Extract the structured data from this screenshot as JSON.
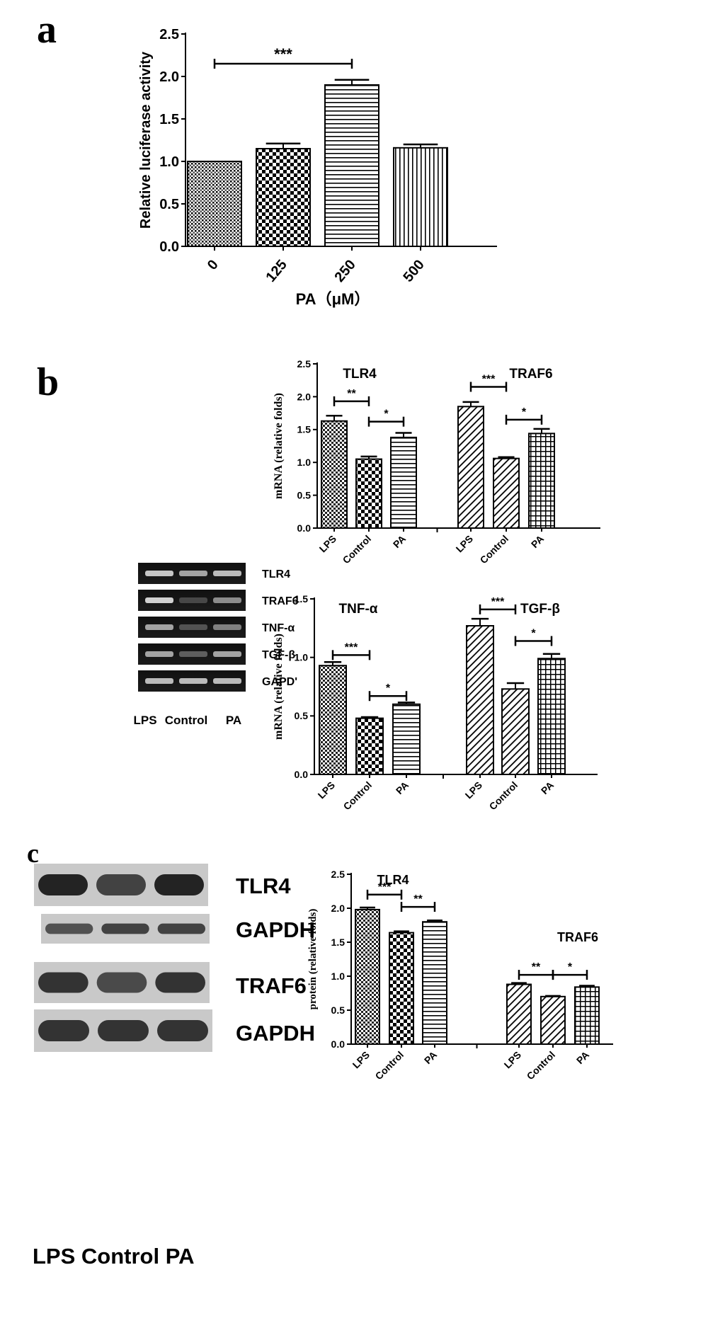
{
  "panels": {
    "a": {
      "letter": "a"
    },
    "b": {
      "letter": "b"
    },
    "c": {
      "letter": "c"
    }
  },
  "gel_b": {
    "bands": [
      "TLR4",
      "TRAF6",
      "TNF-α",
      "TGF-β",
      "GAPD'"
    ],
    "lanes": [
      "LPS",
      "Control",
      "PA"
    ],
    "intensity": [
      [
        0.85,
        0.7,
        0.8
      ],
      [
        0.9,
        0.3,
        0.6
      ],
      [
        0.7,
        0.35,
        0.55
      ],
      [
        0.7,
        0.4,
        0.7
      ],
      [
        0.8,
        0.8,
        0.8
      ]
    ]
  },
  "blot_c": {
    "bands": [
      "TLR4",
      "GAPDH",
      "TRAF6",
      "GAPDH"
    ],
    "lanes_label": "LPS Control  PA",
    "intensity": [
      [
        0.9,
        0.7,
        0.9
      ],
      [
        0.6,
        0.7,
        0.7
      ],
      [
        0.8,
        0.65,
        0.8
      ],
      [
        0.8,
        0.8,
        0.8
      ]
    ]
  },
  "chart_data": [
    {
      "id": "a",
      "type": "bar",
      "categories": [
        "0",
        "125",
        "250",
        "500"
      ],
      "values": [
        1.0,
        1.15,
        1.9,
        1.16
      ],
      "errors": [
        0.0,
        0.06,
        0.06,
        0.04
      ],
      "patterns": [
        "dots",
        "checker",
        "hlines",
        "vlines"
      ],
      "ylabel": "Relative luciferase activity",
      "xlabel": "PA（μM）",
      "ylim": [
        0,
        2.5
      ],
      "yticks": [
        "0.0",
        "0.5",
        "1.0",
        "1.5",
        "2.0",
        "2.5"
      ],
      "significance": [
        {
          "from": 0,
          "to": 2,
          "label": "***",
          "y": 2.15
        }
      ]
    },
    {
      "id": "b1",
      "type": "bar",
      "groups": [
        {
          "title": "TLR4",
          "categories": [
            "LPS",
            "Control",
            "PA"
          ],
          "values": [
            1.63,
            1.05,
            1.38
          ],
          "errors": [
            0.08,
            0.04,
            0.07
          ],
          "patterns": [
            "checker-small",
            "checker",
            "hlines"
          ],
          "significance": [
            {
              "from": 0,
              "to": 1,
              "label": "**",
              "y": 1.93
            },
            {
              "from": 1,
              "to": 2,
              "label": "*",
              "y": 1.62
            }
          ]
        },
        {
          "title": "TRAF6",
          "categories": [
            "LPS",
            "Control",
            "PA"
          ],
          "values": [
            1.85,
            1.06,
            1.44
          ],
          "errors": [
            0.07,
            0.02,
            0.07
          ],
          "patterns": [
            "diag",
            "diag",
            "grid"
          ],
          "significance": [
            {
              "from": 0,
              "to": 1,
              "label": "***",
              "y": 2.15
            },
            {
              "from": 1,
              "to": 2,
              "label": "*",
              "y": 1.65
            }
          ]
        }
      ],
      "ylabel": "mRNA (relative folds)",
      "ylim": [
        0,
        2.5
      ],
      "yticks": [
        "0.0",
        "0.5",
        "1.0",
        "1.5",
        "2.0",
        "2.5"
      ]
    },
    {
      "id": "b2",
      "type": "bar",
      "groups": [
        {
          "title": "TNF-α",
          "categories": [
            "LPS",
            "Control",
            "PA"
          ],
          "values": [
            0.93,
            0.48,
            0.6
          ],
          "errors": [
            0.03,
            0.01,
            0.015
          ],
          "patterns": [
            "checker-small",
            "checker",
            "hlines"
          ],
          "significance": [
            {
              "from": 0,
              "to": 1,
              "label": "***",
              "y": 1.02
            },
            {
              "from": 1,
              "to": 2,
              "label": "*",
              "y": 0.67
            }
          ]
        },
        {
          "title": "TGF-β",
          "categories": [
            "LPS",
            "Control",
            "PA"
          ],
          "values": [
            1.27,
            0.73,
            0.99
          ],
          "errors": [
            0.06,
            0.05,
            0.04
          ],
          "patterns": [
            "diag",
            "diag",
            "grid"
          ],
          "significance": [
            {
              "from": 0,
              "to": 1,
              "label": "***",
              "y": 1.41
            },
            {
              "from": 1,
              "to": 2,
              "label": "*",
              "y": 1.14
            }
          ]
        }
      ],
      "ylabel": "mRNA (relative folds)",
      "ylim": [
        0,
        1.5
      ],
      "yticks": [
        "0.0",
        "0.5",
        "1.0",
        "1.5"
      ]
    },
    {
      "id": "c",
      "type": "bar",
      "groups": [
        {
          "title": "TLR4",
          "categories": [
            "LPS",
            "Control",
            "PA"
          ],
          "values": [
            1.98,
            1.64,
            1.8
          ],
          "errors": [
            0.03,
            0.02,
            0.02
          ],
          "patterns": [
            "checker-small",
            "checker",
            "hlines"
          ],
          "significance": [
            {
              "from": 0,
              "to": 1,
              "label": "***",
              "y": 2.2
            },
            {
              "from": 1,
              "to": 2,
              "label": "**",
              "y": 2.02
            }
          ]
        },
        {
          "title": "TRAF6",
          "categories": [
            "LPS",
            "Control",
            "PA"
          ],
          "values": [
            0.88,
            0.7,
            0.84
          ],
          "errors": [
            0.02,
            0.01,
            0.02
          ],
          "patterns": [
            "diag",
            "diag",
            "grid"
          ],
          "significance": [
            {
              "from": 0,
              "to": 1,
              "label": "**",
              "y": 1.02
            },
            {
              "from": 1,
              "to": 2,
              "label": "*",
              "y": 1.02
            }
          ]
        }
      ],
      "ylabel": "protein (relative folds)",
      "ylim": [
        0,
        2.5
      ],
      "yticks": [
        "0.0",
        "0.5",
        "1.0",
        "1.5",
        "2.0",
        "2.5"
      ]
    }
  ]
}
